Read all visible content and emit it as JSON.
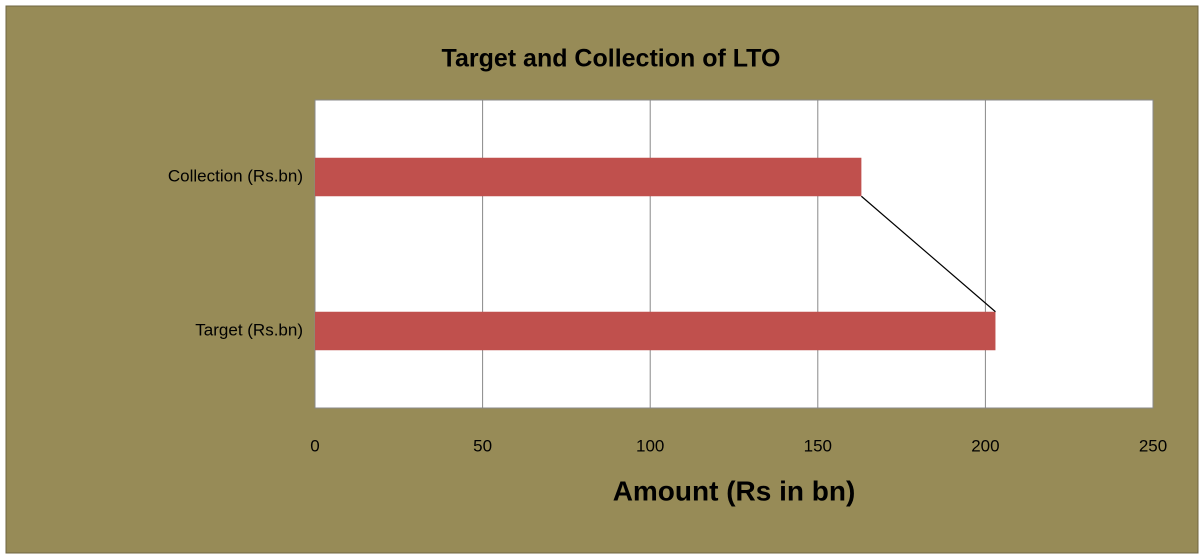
{
  "chart_data": {
    "type": "bar",
    "orientation": "horizontal",
    "title": "Target and Collection of LTO",
    "x_label": "Amount (Rs in bn)",
    "categories": [
      "Collection (Rs.bn)",
      "Target (Rs.bn)"
    ],
    "values": [
      163,
      203
    ],
    "color": "#c0504d",
    "xlim": [
      0,
      250
    ],
    "xticks": [
      0,
      50,
      100,
      150,
      200,
      250
    ],
    "grid": true
  }
}
